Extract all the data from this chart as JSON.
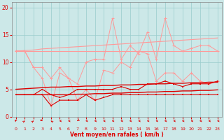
{
  "xlabel": "Vent moyen/en rafales ( km/h )",
  "bg_color": "#cce8e8",
  "grid_color": "#99cccc",
  "xlim": [
    -0.5,
    23.5
  ],
  "ylim": [
    0,
    21
  ],
  "yticks": [
    0,
    5,
    10,
    15,
    20
  ],
  "xticks": [
    0,
    1,
    2,
    3,
    4,
    5,
    6,
    7,
    8,
    9,
    10,
    11,
    12,
    13,
    14,
    15,
    16,
    17,
    18,
    19,
    20,
    21,
    22,
    23
  ],
  "hours": [
    0,
    1,
    2,
    3,
    4,
    5,
    6,
    7,
    8,
    9,
    10,
    11,
    12,
    13,
    14,
    15,
    16,
    17,
    18,
    19,
    20,
    21,
    22,
    23
  ],
  "reg_gust_upper": [
    12.0,
    12.1,
    12.2,
    12.4,
    12.5,
    12.6,
    12.7,
    12.8,
    12.9,
    13.0,
    13.1,
    13.2,
    13.3,
    13.4,
    13.5,
    13.6,
    13.7,
    13.8,
    13.9,
    14.0,
    14.1,
    14.2,
    14.3,
    14.4
  ],
  "reg_gust_lower": [
    12.0,
    12.0,
    12.0,
    12.0,
    12.0,
    12.0,
    12.0,
    12.0,
    12.0,
    12.0,
    12.0,
    12.0,
    12.0,
    12.0,
    12.0,
    12.0,
    12.0,
    12.0,
    12.0,
    12.0,
    12.0,
    12.0,
    12.0,
    12.0
  ],
  "reg_wind_upper": [
    5.0,
    5.1,
    5.2,
    5.3,
    5.4,
    5.4,
    5.5,
    5.5,
    5.6,
    5.6,
    5.7,
    5.7,
    5.8,
    5.8,
    5.9,
    5.9,
    6.0,
    6.0,
    6.1,
    6.1,
    6.2,
    6.2,
    6.3,
    6.3
  ],
  "reg_wind_lower": [
    4.0,
    4.0,
    4.0,
    4.0,
    4.0,
    4.0,
    4.0,
    4.1,
    4.1,
    4.2,
    4.2,
    4.3,
    4.3,
    4.4,
    4.4,
    4.5,
    4.5,
    4.6,
    4.6,
    4.7,
    4.7,
    4.8,
    4.8,
    4.9
  ],
  "gust_data": [
    12,
    12,
    9,
    9,
    7,
    9,
    7,
    6,
    10,
    10.5,
    10.5,
    18,
    10.5,
    13,
    11.5,
    15.5,
    10.5,
    18,
    13,
    12,
    12.5,
    13,
    13,
    12
  ],
  "min_gust_data": [
    12,
    12,
    9,
    7,
    2,
    8,
    7,
    3,
    5,
    3,
    8.5,
    8,
    10,
    9,
    12,
    11.5,
    6.5,
    8,
    8,
    6.5,
    8,
    6.5,
    6,
    6.5
  ],
  "wind_data": [
    4,
    4,
    4,
    5,
    4,
    3.5,
    4,
    5,
    5,
    5,
    5,
    5,
    5.5,
    5,
    5,
    6,
    6,
    6.5,
    6,
    5.5,
    6,
    6,
    6,
    6.5
  ],
  "min_wind_data": [
    4,
    4,
    4,
    4,
    2,
    3,
    3,
    3,
    4,
    3,
    3.5,
    4,
    4,
    4,
    4,
    4,
    4,
    4,
    4,
    4,
    4,
    4,
    4,
    4
  ],
  "color_light": "#ff9999",
  "color_dark": "#dd0000",
  "arrow_angles": [
    210,
    135,
    135,
    45,
    225,
    270,
    270,
    315,
    270,
    270,
    270,
    270,
    270,
    270,
    270,
    270,
    270,
    270,
    270,
    270,
    270,
    270,
    270,
    270
  ]
}
